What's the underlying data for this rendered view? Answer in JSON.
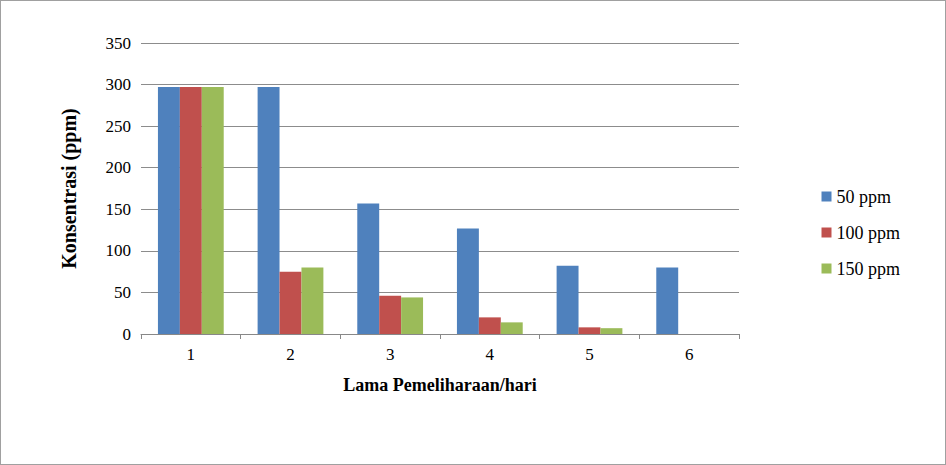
{
  "chart_data": {
    "type": "bar",
    "x_label": "Lama Pemeliharaan/hari",
    "y_label": "Konsentrasi (ppm)",
    "categories": [
      "1",
      "2",
      "3",
      "4",
      "5",
      "6"
    ],
    "series": [
      {
        "name": "50 ppm",
        "color": "#4f81bd",
        "values": [
          297,
          297,
          157,
          127,
          82,
          80
        ]
      },
      {
        "name": "100 ppm",
        "color": "#c0504d",
        "values": [
          297,
          75,
          46,
          20,
          8,
          null
        ]
      },
      {
        "name": "150 ppm",
        "color": "#9bbb59",
        "values": [
          297,
          80,
          44,
          14,
          7,
          null
        ]
      }
    ],
    "ylim": [
      0,
      350
    ],
    "yticks": [
      0,
      50,
      100,
      150,
      200,
      250,
      300,
      350
    ],
    "grid": true,
    "legend": "right"
  }
}
